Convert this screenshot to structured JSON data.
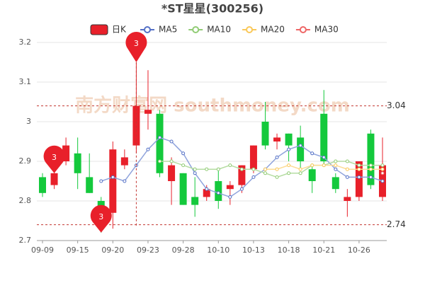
{
  "chart_data": {
    "type": "candlestick",
    "title": "*ST星星(300256)",
    "watermark": "南方财富网 southmoney.com",
    "categories": [
      "09-09",
      null,
      null,
      "09-15",
      null,
      null,
      "09-20",
      null,
      null,
      "09-23",
      null,
      null,
      "09-28",
      null,
      null,
      "10-10",
      null,
      null,
      "10-13",
      null,
      null,
      "10-18",
      null,
      null,
      "10-21",
      null,
      null,
      "10-26",
      null,
      null
    ],
    "kline": {
      "name": "日K",
      "up_color": "#e8202a",
      "down_color": "#14c93c",
      "open": [
        2.86,
        2.84,
        2.9,
        2.92,
        2.86,
        2.8,
        2.77,
        2.89,
        2.94,
        3.02,
        3.02,
        2.85,
        2.87,
        2.81,
        2.81,
        2.85,
        2.83,
        2.84,
        2.88,
        3.0,
        2.95,
        2.97,
        2.96,
        2.88,
        3.02,
        2.86,
        2.8,
        2.81,
        2.97,
        2.81
      ],
      "close": [
        2.82,
        2.87,
        2.94,
        2.87,
        2.82,
        2.78,
        2.93,
        2.91,
        3.04,
        3.03,
        2.87,
        2.89,
        2.79,
        2.79,
        2.83,
        2.8,
        2.84,
        2.89,
        2.94,
        2.94,
        2.96,
        2.94,
        2.9,
        2.85,
        2.9,
        2.83,
        2.81,
        2.9,
        2.84,
        2.89
      ],
      "high": [
        2.87,
        2.88,
        2.96,
        2.96,
        2.92,
        2.81,
        2.95,
        2.93,
        3.15,
        3.13,
        3.03,
        2.91,
        2.87,
        2.86,
        2.84,
        2.88,
        2.85,
        2.89,
        2.94,
        3.05,
        2.97,
        2.97,
        2.99,
        2.89,
        3.08,
        2.87,
        2.83,
        2.9,
        2.98,
        2.96
      ],
      "low": [
        2.81,
        2.83,
        2.89,
        2.83,
        2.82,
        2.72,
        2.73,
        2.88,
        2.92,
        2.98,
        2.86,
        2.79,
        2.79,
        2.76,
        2.8,
        2.78,
        2.79,
        2.82,
        2.87,
        2.93,
        2.93,
        2.9,
        2.88,
        2.82,
        2.89,
        2.82,
        2.76,
        2.8,
        2.83,
        2.8
      ]
    },
    "series": [
      {
        "name": "MA5",
        "color": "#8fa3dc",
        "marker_color": "#5470c6",
        "values": [
          null,
          null,
          null,
          null,
          null,
          2.85,
          2.86,
          2.85,
          2.89,
          2.93,
          2.96,
          2.95,
          2.92,
          2.87,
          2.83,
          2.82,
          2.81,
          2.83,
          2.86,
          2.88,
          2.91,
          2.93,
          2.94,
          2.92,
          2.91,
          2.88,
          2.86,
          2.86,
          2.86,
          2.85
        ]
      },
      {
        "name": "MA10",
        "color": "#b5dca2",
        "marker_color": "#91cc75",
        "values": [
          null,
          null,
          null,
          null,
          null,
          null,
          null,
          null,
          null,
          null,
          2.9,
          2.9,
          2.89,
          2.88,
          2.88,
          2.88,
          2.89,
          2.88,
          2.88,
          2.87,
          2.86,
          2.87,
          2.87,
          2.89,
          2.89,
          2.9,
          2.9,
          2.89,
          2.89,
          2.89
        ]
      },
      {
        "name": "MA20",
        "color": "#fcdc96",
        "marker_color": "#fac858",
        "values": [
          null,
          null,
          null,
          null,
          null,
          null,
          null,
          null,
          null,
          null,
          null,
          null,
          null,
          null,
          null,
          null,
          null,
          null,
          null,
          2.88,
          2.88,
          2.89,
          2.88,
          2.89,
          2.89,
          2.89,
          2.88,
          2.88,
          2.88,
          2.88
        ]
      },
      {
        "name": "MA30",
        "color": "#f49a9a",
        "marker_color": "#ee6666",
        "values": [
          null,
          null,
          null,
          null,
          null,
          null,
          null,
          null,
          null,
          null,
          null,
          null,
          null,
          null,
          null,
          null,
          null,
          null,
          null,
          null,
          null,
          null,
          null,
          null,
          null,
          null,
          null,
          null,
          null,
          2.87
        ]
      }
    ],
    "pins": {
      "color": "#e8202a",
      "values": [
        null,
        2.87,
        null,
        null,
        null,
        2.72,
        null,
        null,
        3.15,
        null,
        null,
        null,
        null,
        null,
        null,
        null,
        null,
        null,
        null,
        null,
        null,
        null,
        null,
        null,
        null,
        null,
        null,
        null,
        null,
        null
      ],
      "labels": [
        null,
        "3",
        null,
        null,
        null,
        "3",
        null,
        null,
        "3",
        null,
        null,
        null,
        null,
        null,
        null,
        null,
        null,
        null,
        null,
        null,
        null,
        null,
        null,
        null,
        null,
        null,
        null,
        null,
        null,
        null
      ]
    },
    "mark_lines": [
      3.04,
      2.74
    ],
    "ylim": [
      2.7,
      3.2
    ],
    "yticks": [
      2.7,
      2.8,
      2.9,
      3,
      3.1,
      3.2
    ],
    "grid": true
  }
}
